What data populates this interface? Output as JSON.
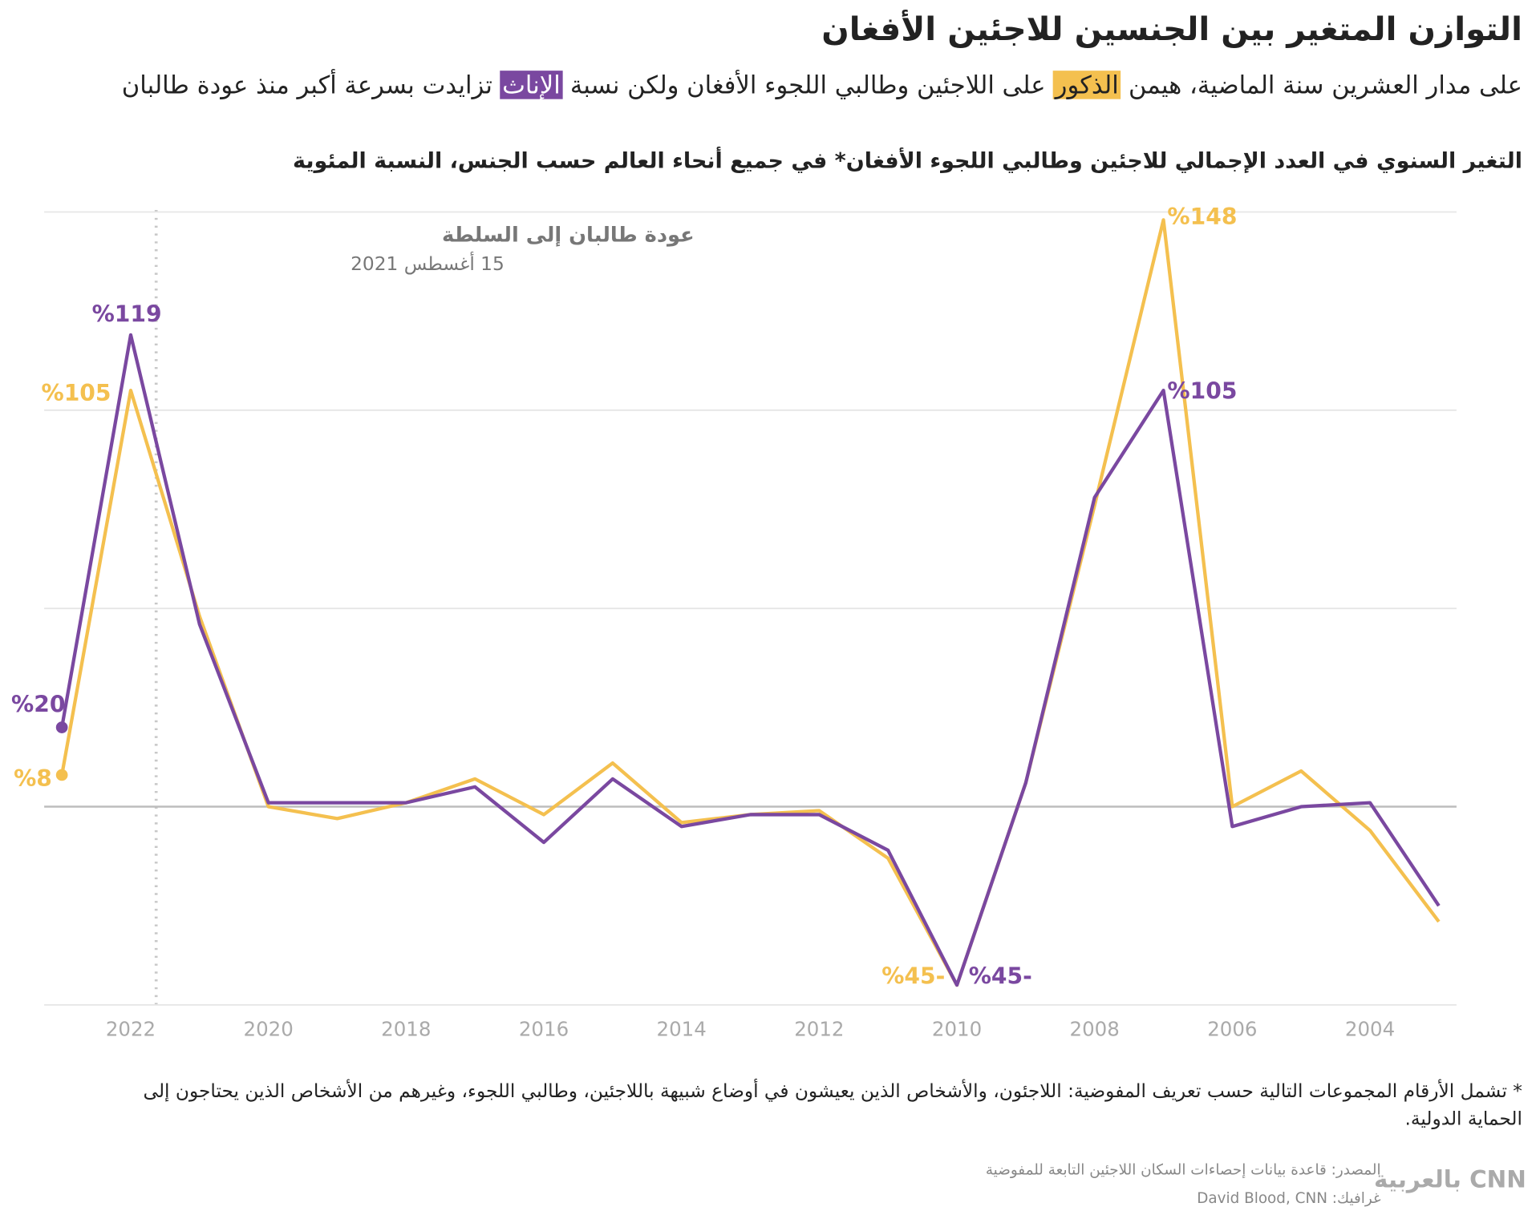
{
  "chart_data": {
    "type": "line",
    "title": "التوازن المتغير بين الجنسين للاجئين الأفغان",
    "subtitle_parts": [
      "على مدار العشرين سنة الماضية، هيمن",
      "على اللاجئين وطالبي اللجوء الأفغان ولكن نسبة",
      "تزايدت بسرعة أكبر منذ عودة طالبان"
    ],
    "chart_subtitle": "التغير السنوي في العدد الإجمالي للاجئين وطالبي اللجوء الأفغان* في جميع أنحاء العالم حسب الجنس، النسبة المئوية",
    "annotation": {
      "title": "عودة طالبان إلى السلطة",
      "date": "15 أغسطس 2021"
    },
    "x": [
      2023,
      2022,
      2021,
      2020,
      2019,
      2018,
      2017,
      2016,
      2015,
      2014,
      2013,
      2012,
      2011,
      2010,
      2009,
      2008,
      2007,
      2006,
      2005,
      2004,
      2003
    ],
    "xlim": [
      2023,
      2003
    ],
    "xticks": [
      2022,
      2020,
      2018,
      2016,
      2014,
      2012,
      2010,
      2008,
      2006,
      2004
    ],
    "ylim": [
      -50,
      150
    ],
    "yticks": [
      -50,
      0,
      50,
      100,
      150
    ],
    "grid": true,
    "series": [
      {
        "name": "الذكور",
        "color": "#f4c04f",
        "values": [
          8,
          105,
          48,
          0,
          -3,
          1,
          7,
          -2,
          11,
          -4,
          -2,
          -1,
          -13,
          -45,
          6,
          76,
          148,
          0,
          9,
          -6,
          -29
        ],
        "value_labels": [
          "%8",
          "%105",
          null,
          null,
          null,
          null,
          null,
          null,
          null,
          null,
          null,
          null,
          null,
          "%45-",
          null,
          null,
          "%148",
          null,
          null,
          null,
          null
        ]
      },
      {
        "name": "الإناث",
        "color": "#7a48a0",
        "values": [
          20,
          119,
          46,
          1,
          1,
          1,
          5,
          -9,
          7,
          -5,
          -2,
          -2,
          -11,
          -45,
          6,
          78,
          105,
          -5,
          0,
          1,
          -25
        ],
        "value_labels": [
          "%20",
          "%119",
          null,
          null,
          null,
          null,
          null,
          null,
          null,
          null,
          null,
          null,
          null,
          "%45-",
          null,
          null,
          "%105",
          null,
          null,
          null,
          null
        ]
      }
    ],
    "footnote": "* تشمل الأرقام المجموعات التالية حسب تعريف المفوضية: اللاجئون، والأشخاص الذين يعيشون في أوضاع شبيهة باللاجئين، وطالبي اللجوء، وغيرهم من الأشخاص الذين يحتاجون إلى الحماية الدولية.",
    "source": "المصدر: قاعدة بيانات إحصاءات السكان اللاجئين التابعة للمفوضية",
    "credit": "غرافيك: David Blood, CNN",
    "logo": "CNN بالعربية"
  }
}
